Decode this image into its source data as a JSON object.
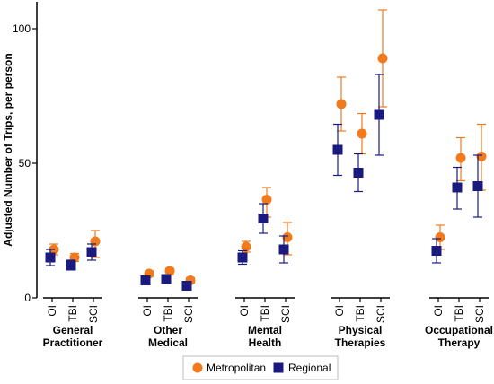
{
  "chart_data": {
    "type": "scatter",
    "ylabel": "Adjusted Number of Trips, per person",
    "ylim": [
      0,
      110
    ],
    "yticks": [
      0,
      50,
      100
    ],
    "grid": false,
    "legend_position": "bottom-center",
    "groups": [
      {
        "name": "General Practitioner",
        "lines": [
          "General",
          "Practitioner"
        ],
        "categories": [
          "OI",
          "TBI",
          "SCI"
        ]
      },
      {
        "name": "Other Medical",
        "lines": [
          "Other",
          "Medical"
        ],
        "categories": [
          "OI",
          "TBI",
          "SCI"
        ]
      },
      {
        "name": "Mental Health",
        "lines": [
          "Mental",
          "Health"
        ],
        "categories": [
          "OI",
          "TBI",
          "SCI"
        ]
      },
      {
        "name": "Physical Therapies",
        "lines": [
          "Physical",
          "Therapies"
        ],
        "categories": [
          "OI",
          "TBI",
          "SCI"
        ]
      },
      {
        "name": "Occupational Therapy",
        "lines": [
          "Occupational",
          "Therapy"
        ],
        "categories": [
          "OI",
          "TBI",
          "SCI"
        ]
      }
    ],
    "series": [
      {
        "name": "Metropolitan",
        "marker": "circle",
        "color": "#F07A1C",
        "values": [
          [
            18,
            15,
            21
          ],
          [
            9,
            10,
            6.5
          ],
          [
            19,
            36.5,
            22.5
          ],
          [
            72,
            61,
            89
          ],
          [
            22.5,
            52,
            52.5
          ]
        ],
        "errors": [
          [
            [
              16,
              20
            ],
            [
              13.5,
              16.5
            ],
            [
              15,
              25
            ]
          ],
          [
            [
              8,
              10
            ],
            [
              8.5,
              11
            ],
            [
              5.5,
              7.5
            ]
          ],
          [
            [
              17,
              21
            ],
            [
              30,
              41
            ],
            [
              16,
              28
            ]
          ],
          [
            [
              62,
              82
            ],
            [
              53.5,
              68.5
            ],
            [
              71,
              107
            ]
          ],
          [
            [
              18,
              27
            ],
            [
              43.5,
              59.5
            ],
            [
              40,
              64.5
            ]
          ]
        ]
      },
      {
        "name": "Regional",
        "marker": "square",
        "color": "#1A1A7E",
        "values": [
          [
            15,
            12,
            17
          ],
          [
            6.5,
            7,
            4.5
          ],
          [
            15,
            29.5,
            18
          ],
          [
            55,
            46.5,
            68
          ],
          [
            17.5,
            41,
            41.5
          ]
        ],
        "errors": [
          [
            [
              12,
              18
            ],
            [
              11,
              14
            ],
            [
              14,
              20
            ]
          ],
          [
            [
              5.5,
              7.5
            ],
            [
              6,
              8
            ],
            [
              3.5,
              5.5
            ]
          ],
          [
            [
              12.5,
              17.5
            ],
            [
              24,
              35
            ],
            [
              13,
              23
            ]
          ],
          [
            [
              45.5,
              64.5
            ],
            [
              39.5,
              53.5
            ],
            [
              53,
              83
            ]
          ],
          [
            [
              13,
              22
            ],
            [
              33,
              48.5
            ],
            [
              30,
              53
            ]
          ]
        ]
      }
    ]
  }
}
